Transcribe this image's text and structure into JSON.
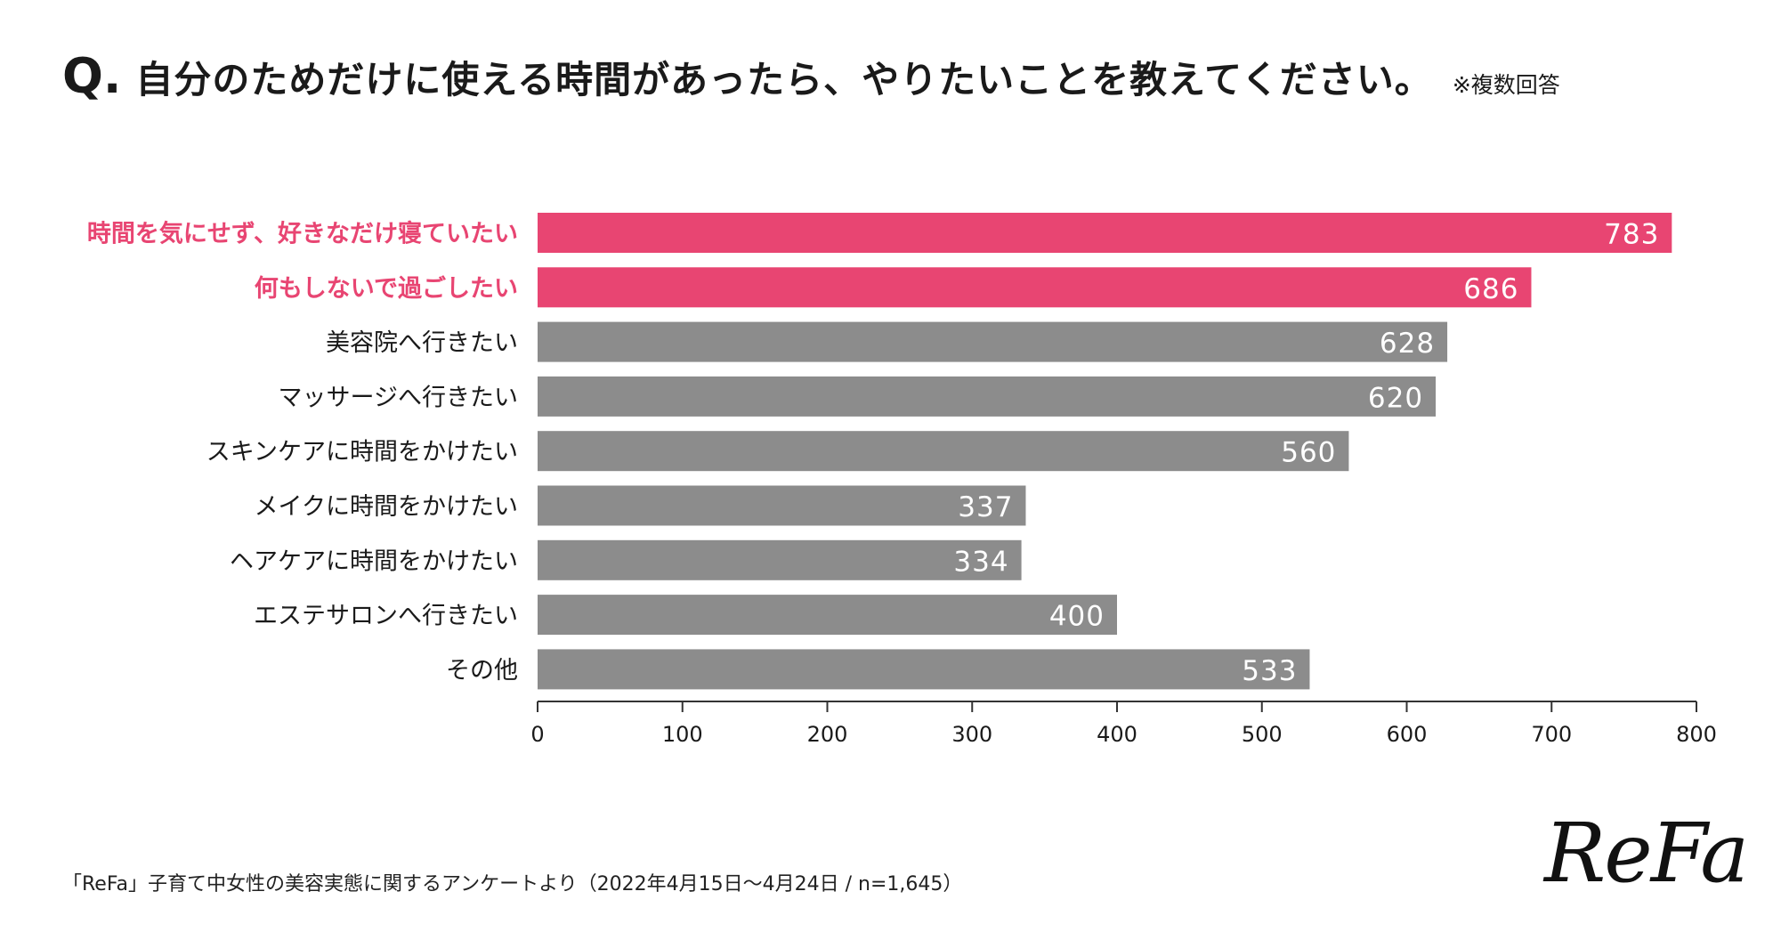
{
  "title": {
    "prefix": "Q.",
    "question": "自分のためだけに使える時間があったら、やりたいことを教えてください。",
    "note": "※複数回答"
  },
  "colors": {
    "highlight": "#e84572",
    "default": "#8c8c8c",
    "axis": "#333333",
    "value_text": "#ffffff"
  },
  "chart_data": {
    "type": "bar",
    "orientation": "horizontal",
    "categories": [
      "時間を気にせず、好きなだけ寝ていたい",
      "何もしないで過ごしたい",
      "美容院へ行きたい",
      "マッサージへ行きたい",
      "スキンケアに時間をかけたい",
      "メイクに時間をかけたい",
      "ヘアケアに時間をかけたい",
      "エステサロンへ行きたい",
      "その他"
    ],
    "values": [
      783,
      686,
      628,
      620,
      560,
      337,
      334,
      400,
      533
    ],
    "highlighted": [
      true,
      true,
      false,
      false,
      false,
      false,
      false,
      false,
      false
    ],
    "xlim": [
      0,
      800
    ],
    "xticks": [
      0,
      100,
      200,
      300,
      400,
      500,
      600,
      700,
      800
    ],
    "grid": false,
    "data_labels": true
  },
  "source": "「ReFa」子育て中女性の美容実態に関するアンケートより（2022年4月15日〜4月24日 / n=1,645）",
  "logo": "ReFa"
}
